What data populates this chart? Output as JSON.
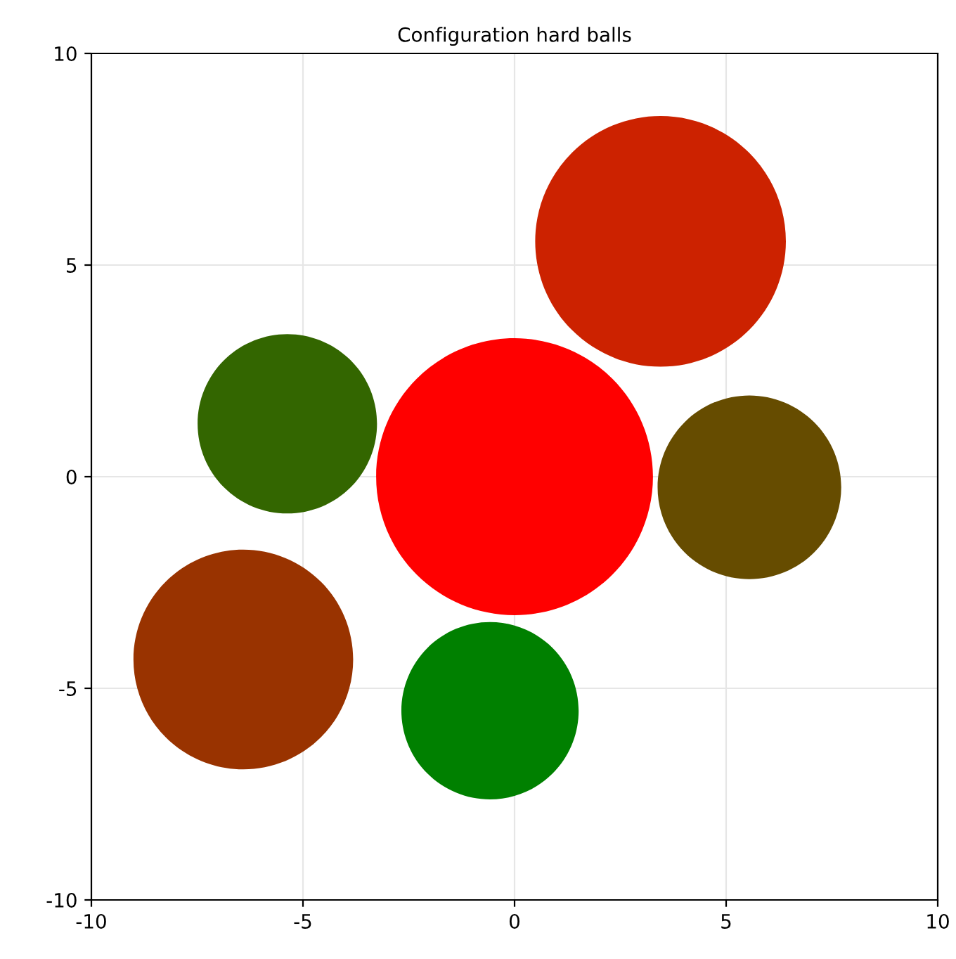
{
  "chart_data": {
    "type": "bubble",
    "title": "Configuration hard balls",
    "x": [
      0.0,
      3.45,
      -5.37,
      5.55,
      -6.41,
      -0.58
    ],
    "values": [
      0.0,
      5.56,
      1.25,
      -0.25,
      -4.32,
      -5.53
    ],
    "sizes": [
      1,
      0.82,
      0.42,
      0.44,
      0.63,
      0.41
    ],
    "colors": [
      "#ff0000",
      "#cc2200",
      "#336600",
      "#664c00",
      "#993300",
      "#008000"
    ],
    "xlim": [
      -10,
      10
    ],
    "ylim": [
      -10,
      10
    ],
    "xticks": [
      -10,
      -5,
      0,
      5,
      10
    ],
    "yticks": [
      -10,
      -5,
      0,
      5,
      10
    ],
    "grid": true
  }
}
